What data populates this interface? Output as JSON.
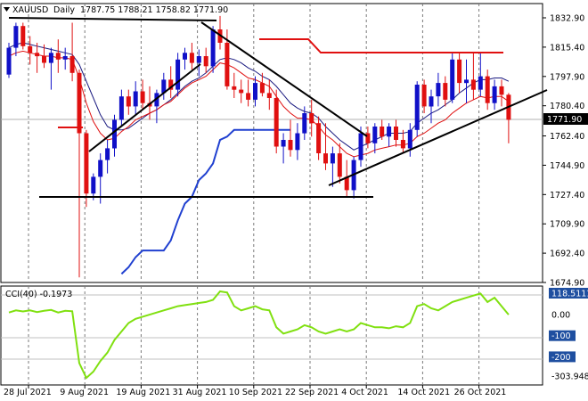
{
  "header": {
    "symbol": "XAUUSD",
    "timeframe": "Daily",
    "ohlc": "1787.75 1788.21 1758.82 1771.90"
  },
  "cci_panel": {
    "title": "CCI(40) -0.1973"
  },
  "colors": {
    "bull": "#1010c8",
    "bear": "#e01010",
    "ma_fast": "#e01010",
    "ma_slow": "#1a1a80",
    "trend_ma": "#2040d0",
    "cci_line": "#80e010",
    "trendline": "#000000",
    "price_tag_bg": "#000000"
  },
  "chart_data": [
    {
      "type": "candlestick",
      "title": "XAUUSD Daily",
      "x_tick_labels": [
        "28 Jul 2021",
        "9 Aug 2021",
        "19 Aug 2021",
        "31 Aug 2021",
        "10 Sep 2021",
        "22 Sep 2021",
        "4 Oct 2021",
        "14 Oct 2021",
        "26 Oct 2021"
      ],
      "y_tick_labels": [
        "1832.90",
        "1815.40",
        "1797.90",
        "1780.40",
        "1762.40",
        "1744.90",
        "1727.40",
        "1709.90",
        "1692.40",
        "1674.90"
      ],
      "current_price_label": "1771.90",
      "ylim": [
        1674.9,
        1832.9
      ],
      "candles": [
        [
          1799,
          1818,
          1797,
          1815
        ],
        [
          1815,
          1830,
          1810,
          1828
        ],
        [
          1828,
          1830,
          1814,
          1816
        ],
        [
          1816,
          1822,
          1805,
          1812
        ],
        [
          1812,
          1818,
          1800,
          1810
        ],
        [
          1810,
          1817,
          1803,
          1806
        ],
        [
          1806,
          1815,
          1790,
          1812
        ],
        [
          1812,
          1820,
          1800,
          1808
        ],
        [
          1808,
          1815,
          1802,
          1810
        ],
        [
          1810,
          1830,
          1795,
          1800
        ],
        [
          1800,
          1802,
          1678,
          1764
        ],
        [
          1764,
          1766,
          1720,
          1728
        ],
        [
          1728,
          1740,
          1724,
          1738
        ],
        [
          1738,
          1752,
          1722,
          1748
        ],
        [
          1748,
          1760,
          1740,
          1755
        ],
        [
          1755,
          1775,
          1750,
          1772
        ],
        [
          1772,
          1790,
          1768,
          1786
        ],
        [
          1786,
          1790,
          1775,
          1780
        ],
        [
          1780,
          1795,
          1775,
          1789
        ],
        [
          1789,
          1796,
          1778,
          1782
        ],
        [
          1782,
          1792,
          1772,
          1780
        ],
        [
          1780,
          1790,
          1770,
          1788
        ],
        [
          1788,
          1800,
          1784,
          1796
        ],
        [
          1796,
          1804,
          1785,
          1790
        ],
        [
          1790,
          1812,
          1786,
          1808
        ],
        [
          1808,
          1815,
          1802,
          1812
        ],
        [
          1812,
          1818,
          1802,
          1806
        ],
        [
          1806,
          1814,
          1798,
          1810
        ],
        [
          1810,
          1815,
          1800,
          1804
        ],
        [
          1804,
          1828,
          1800,
          1826
        ],
        [
          1826,
          1834,
          1814,
          1818
        ],
        [
          1818,
          1826,
          1790,
          1792
        ],
        [
          1792,
          1800,
          1785,
          1790
        ],
        [
          1790,
          1796,
          1782,
          1788
        ],
        [
          1788,
          1796,
          1780,
          1784
        ],
        [
          1784,
          1798,
          1780,
          1794
        ],
        [
          1794,
          1800,
          1786,
          1788
        ],
        [
          1788,
          1796,
          1778,
          1785
        ],
        [
          1785,
          1790,
          1752,
          1756
        ],
        [
          1756,
          1764,
          1746,
          1760
        ],
        [
          1760,
          1772,
          1750,
          1754
        ],
        [
          1754,
          1770,
          1748,
          1764
        ],
        [
          1764,
          1780,
          1760,
          1776
        ],
        [
          1776,
          1784,
          1762,
          1770
        ],
        [
          1770,
          1774,
          1748,
          1752
        ],
        [
          1752,
          1770,
          1742,
          1746
        ],
        [
          1746,
          1756,
          1732,
          1752
        ],
        [
          1752,
          1758,
          1734,
          1738
        ],
        [
          1738,
          1748,
          1726,
          1730
        ],
        [
          1730,
          1750,
          1725,
          1748
        ],
        [
          1748,
          1768,
          1744,
          1764
        ],
        [
          1764,
          1768,
          1755,
          1758
        ],
        [
          1758,
          1770,
          1752,
          1768
        ],
        [
          1768,
          1772,
          1760,
          1762
        ],
        [
          1762,
          1770,
          1756,
          1768
        ],
        [
          1768,
          1772,
          1756,
          1760
        ],
        [
          1760,
          1766,
          1752,
          1755
        ],
        [
          1755,
          1770,
          1750,
          1766
        ],
        [
          1766,
          1795,
          1762,
          1793
        ],
        [
          1793,
          1796,
          1776,
          1780
        ],
        [
          1780,
          1790,
          1770,
          1786
        ],
        [
          1786,
          1800,
          1780,
          1794
        ],
        [
          1794,
          1798,
          1780,
          1784
        ],
        [
          1784,
          1812,
          1782,
          1808
        ],
        [
          1808,
          1812,
          1788,
          1794
        ],
        [
          1794,
          1808,
          1782,
          1796
        ],
        [
          1796,
          1812,
          1784,
          1790
        ],
        [
          1790,
          1812,
          1786,
          1798
        ],
        [
          1798,
          1802,
          1778,
          1782
        ],
        [
          1782,
          1796,
          1778,
          1792
        ],
        [
          1792,
          1796,
          1780,
          1787
        ],
        [
          1787,
          1788,
          1758,
          1772
        ]
      ],
      "overlays": {
        "ma_fast": [
          1810,
          1812,
          1813,
          1812,
          1811,
          1810,
          1810,
          1809,
          1809,
          1808,
          1797,
          1782,
          1771,
          1764,
          1760,
          1761,
          1765,
          1768,
          1772,
          1774,
          1776,
          1778,
          1781,
          1783,
          1787,
          1791,
          1794,
          1796,
          1798,
          1802,
          1806,
          1805,
          1803,
          1800,
          1797,
          1796,
          1794,
          1792,
          1786,
          1780,
          1776,
          1773,
          1773,
          1772,
          1768,
          1763,
          1760,
          1756,
          1752,
          1750,
          1751,
          1752,
          1754,
          1755,
          1756,
          1757,
          1757,
          1758,
          1762,
          1764,
          1767,
          1770,
          1772,
          1776,
          1779,
          1782,
          1784,
          1786,
          1785,
          1786,
          1786,
          1783
        ],
        "ma_slow": [
          1815,
          1817,
          1818,
          1817,
          1816,
          1815,
          1814,
          1813,
          1812,
          1811,
          1805,
          1795,
          1785,
          1775,
          1768,
          1766,
          1766,
          1767,
          1770,
          1773,
          1776,
          1778,
          1781,
          1784,
          1788,
          1792,
          1795,
          1797,
          1800,
          1804,
          1808,
          1809,
          1808,
          1806,
          1803,
          1801,
          1798,
          1796,
          1792,
          1787,
          1782,
          1779,
          1777,
          1776,
          1773,
          1768,
          1764,
          1760,
          1757,
          1754,
          1756,
          1758,
          1760,
          1762,
          1764,
          1764,
          1764,
          1765,
          1770,
          1773,
          1776,
          1778,
          1781,
          1784,
          1788,
          1791,
          1794,
          1796,
          1796,
          1797,
          1797,
          1795
        ],
        "trend_ma": [
          null,
          null,
          null,
          null,
          null,
          null,
          null,
          null,
          null,
          null,
          null,
          null,
          null,
          null,
          null,
          null,
          1680,
          1684,
          1690,
          1694,
          1694,
          1694,
          1694,
          1700,
          1712,
          1722,
          1726,
          1736,
          1740,
          1746,
          1760,
          1762,
          1766,
          1766,
          1766,
          1766,
          1766,
          1766,
          1766,
          1766,
          1766,
          null,
          null,
          null,
          null,
          null,
          null,
          null,
          null,
          null,
          null,
          null,
          null,
          null,
          null,
          null,
          null,
          null,
          null,
          null,
          null,
          null,
          null,
          null,
          null,
          null,
          null,
          null,
          null,
          null,
          null,
          null
        ]
      }
    },
    {
      "type": "line",
      "title": "CCI(40) -0.1973",
      "y_tick_labels": [
        "118.5111",
        "0.00",
        "-100",
        "-200",
        "-303.9481"
      ],
      "ylim": [
        -303.9481,
        118.5111
      ],
      "series": [
        {
          "name": "CCI(40)",
          "values": [
            10,
            20,
            15,
            20,
            12,
            18,
            22,
            10,
            18,
            16,
            -230,
            -300,
            -270,
            -220,
            -180,
            -120,
            -80,
            -40,
            -20,
            -10,
            0,
            10,
            20,
            30,
            40,
            45,
            50,
            55,
            60,
            70,
            110,
            105,
            40,
            20,
            30,
            40,
            25,
            20,
            -60,
            -90,
            -80,
            -70,
            -50,
            -60,
            -80,
            -90,
            -80,
            -70,
            -80,
            -70,
            -40,
            -50,
            -60,
            -60,
            -65,
            -55,
            -60,
            -40,
            40,
            50,
            30,
            20,
            40,
            60,
            70,
            80,
            90,
            100,
            60,
            80,
            40,
            0
          ]
        }
      ]
    }
  ]
}
